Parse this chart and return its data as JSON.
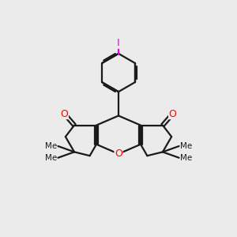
{
  "background_color": "#ebebeb",
  "bond_color": "#1a1a1a",
  "oxygen_color": "#ff0000",
  "iodine_color": "#ee00ee",
  "lw": 1.6,
  "fig_size": [
    3.0,
    3.0
  ],
  "dpi": 100,
  "xlim": [
    0,
    10
  ],
  "ylim": [
    0,
    10
  ]
}
